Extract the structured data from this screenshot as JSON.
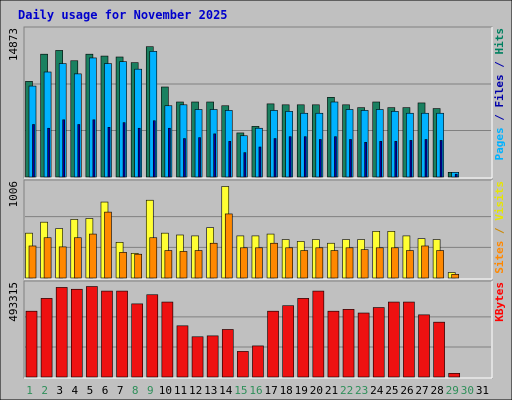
{
  "chart_data": {
    "type": "bar",
    "title": "Daily usage for November 2025",
    "categories": [
      "1",
      "2",
      "3",
      "4",
      "5",
      "6",
      "7",
      "8",
      "9",
      "10",
      "11",
      "12",
      "13",
      "14",
      "15",
      "16",
      "17",
      "18",
      "19",
      "20",
      "21",
      "22",
      "23",
      "24",
      "25",
      "26",
      "27",
      "28",
      "29",
      "30",
      "31"
    ],
    "weekend_color": "#2f8f5a",
    "weekday_color": "#1a7a3f",
    "panels": [
      {
        "key": "top",
        "ytick_label": "1487",
        "ytick_suffix": "3",
        "ymax": 14873,
        "legend": [
          {
            "text": "Pages",
            "color": "#00b2ff"
          },
          {
            "text": " / ",
            "color": "#0000aa"
          },
          {
            "text": "Files",
            "color": "#0000aa"
          },
          {
            "text": " / ",
            "color": "#0000aa"
          },
          {
            "text": "Hits",
            "color": "#008060"
          }
        ],
        "series": [
          {
            "name": "Hits",
            "color": "#1a8060",
            "values": [
              10200,
              13100,
              13500,
              12400,
              13100,
              12900,
              12800,
              12200,
              13900,
              9600,
              8000,
              8000,
              8000,
              7600,
              4700,
              5400,
              7800,
              7700,
              7700,
              7700,
              8500,
              7700,
              7400,
              8000,
              7400,
              7400,
              7900,
              7300,
              500,
              0,
              0
            ]
          },
          {
            "name": "Files",
            "color": "#00b2ff",
            "values": [
              9700,
              11200,
              12100,
              11000,
              12700,
              12100,
              12300,
              11500,
              13400,
              7600,
              7700,
              7200,
              7200,
              7100,
              4400,
              5200,
              7100,
              7000,
              6800,
              6800,
              8000,
              7200,
              7100,
              7200,
              7000,
              6800,
              6800,
              6800,
              500,
              0,
              0
            ]
          },
          {
            "name": "Pages",
            "color": "#0000aa",
            "values": [
              5600,
              5200,
              6100,
              5600,
              6100,
              5300,
              5800,
              5200,
              6000,
              5200,
              4100,
              4200,
              4600,
              3800,
              2600,
              3200,
              4100,
              4300,
              4300,
              4000,
              4300,
              4000,
              3700,
              3800,
              3800,
              3900,
              4000,
              3900,
              300,
              0,
              0
            ]
          }
        ]
      },
      {
        "key": "mid",
        "ytick_label": "1006",
        "ymax": 1006,
        "legend": [
          {
            "text": "Sites",
            "color": "#ff8800"
          },
          {
            "text": " / ",
            "color": "#cc8800"
          },
          {
            "text": "Visits",
            "color": "#e6e600"
          }
        ],
        "series": [
          {
            "name": "Visits",
            "color": "#ffff33",
            "values": [
              490,
              610,
              540,
              640,
              650,
              830,
              390,
              270,
              850,
              490,
              470,
              460,
              550,
              1000,
              460,
              460,
              480,
              420,
              400,
              420,
              380,
              420,
              420,
              510,
              510,
              460,
              430,
              420,
              60,
              0,
              0
            ]
          },
          {
            "name": "Sites",
            "color": "#ff8800",
            "values": [
              350,
              440,
              340,
              440,
              480,
              720,
              280,
              260,
              440,
              300,
              290,
              300,
              380,
              700,
              330,
              330,
              380,
              330,
              300,
              330,
              300,
              330,
              310,
              330,
              330,
              300,
              350,
              300,
              40,
              0,
              0
            ]
          }
        ]
      },
      {
        "key": "low",
        "ytick_label": "493315",
        "ymax": 493315,
        "legend": [
          {
            "text": "KBytes",
            "color": "#ff0000"
          }
        ],
        "series": [
          {
            "name": "KBytes",
            "color": "#ee1111",
            "values": [
              360000,
              430000,
              490000,
              480000,
              495000,
              470000,
              470000,
              400000,
              450000,
              410000,
              280000,
              220000,
              225000,
              260000,
              140000,
              170000,
              360000,
              390000,
              430000,
              470000,
              360000,
              370000,
              350000,
              380000,
              410000,
              410000,
              340000,
              300000,
              20000,
              0,
              0
            ]
          }
        ]
      }
    ]
  }
}
